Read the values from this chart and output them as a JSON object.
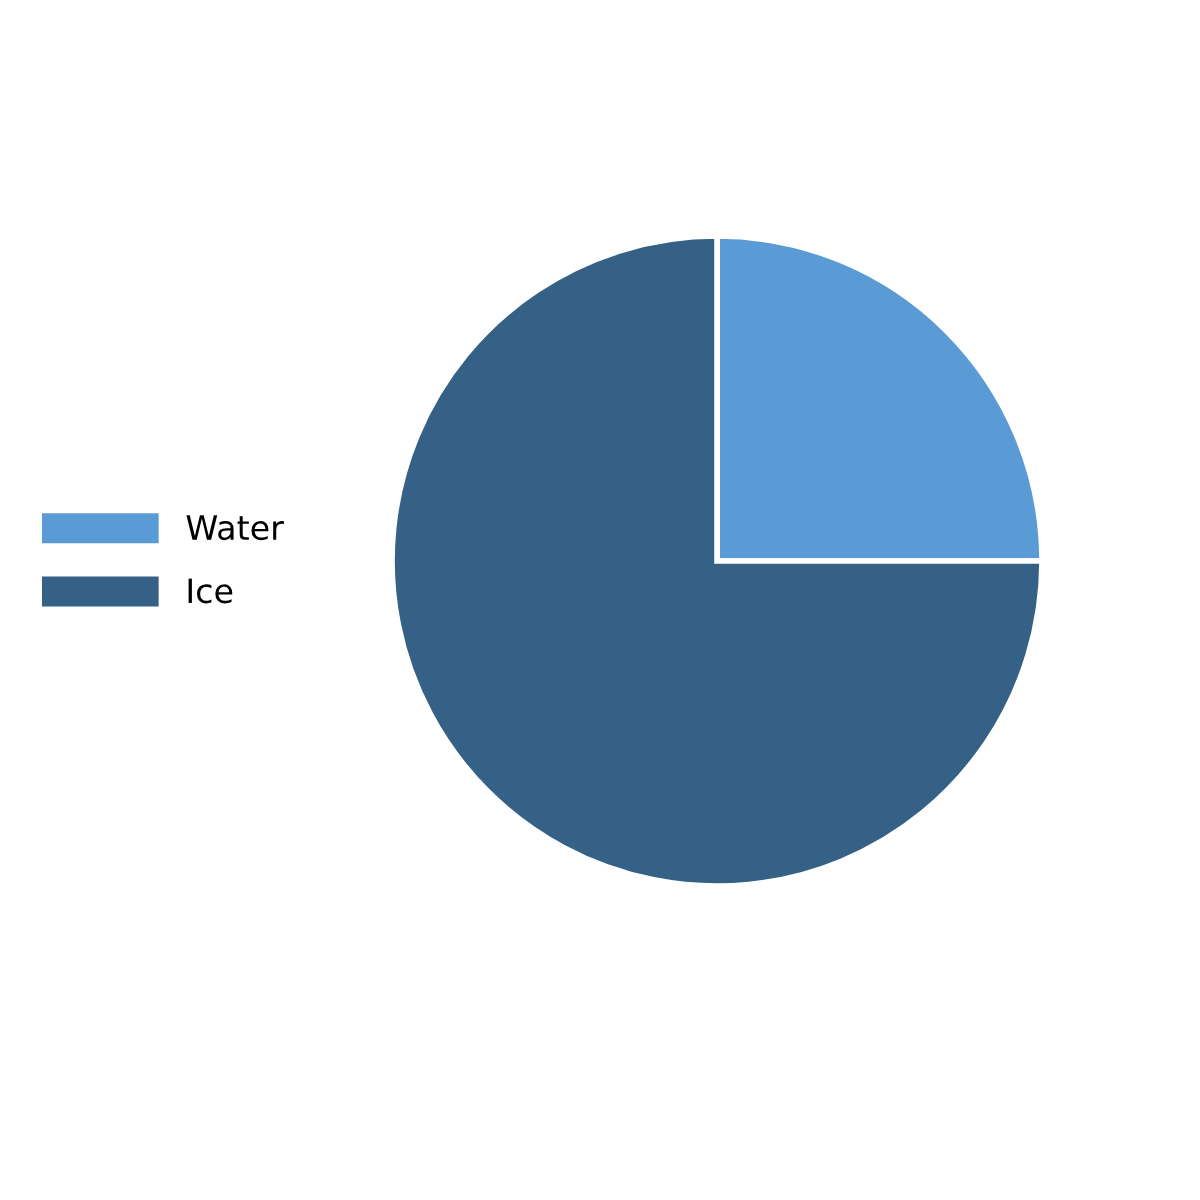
{
  "chart_data": {
    "type": "pie",
    "categories": [
      "Water",
      "Ice"
    ],
    "values": [
      25,
      75
    ],
    "colors": [
      "#5b9bd5",
      "#356186"
    ],
    "legend": "left"
  }
}
